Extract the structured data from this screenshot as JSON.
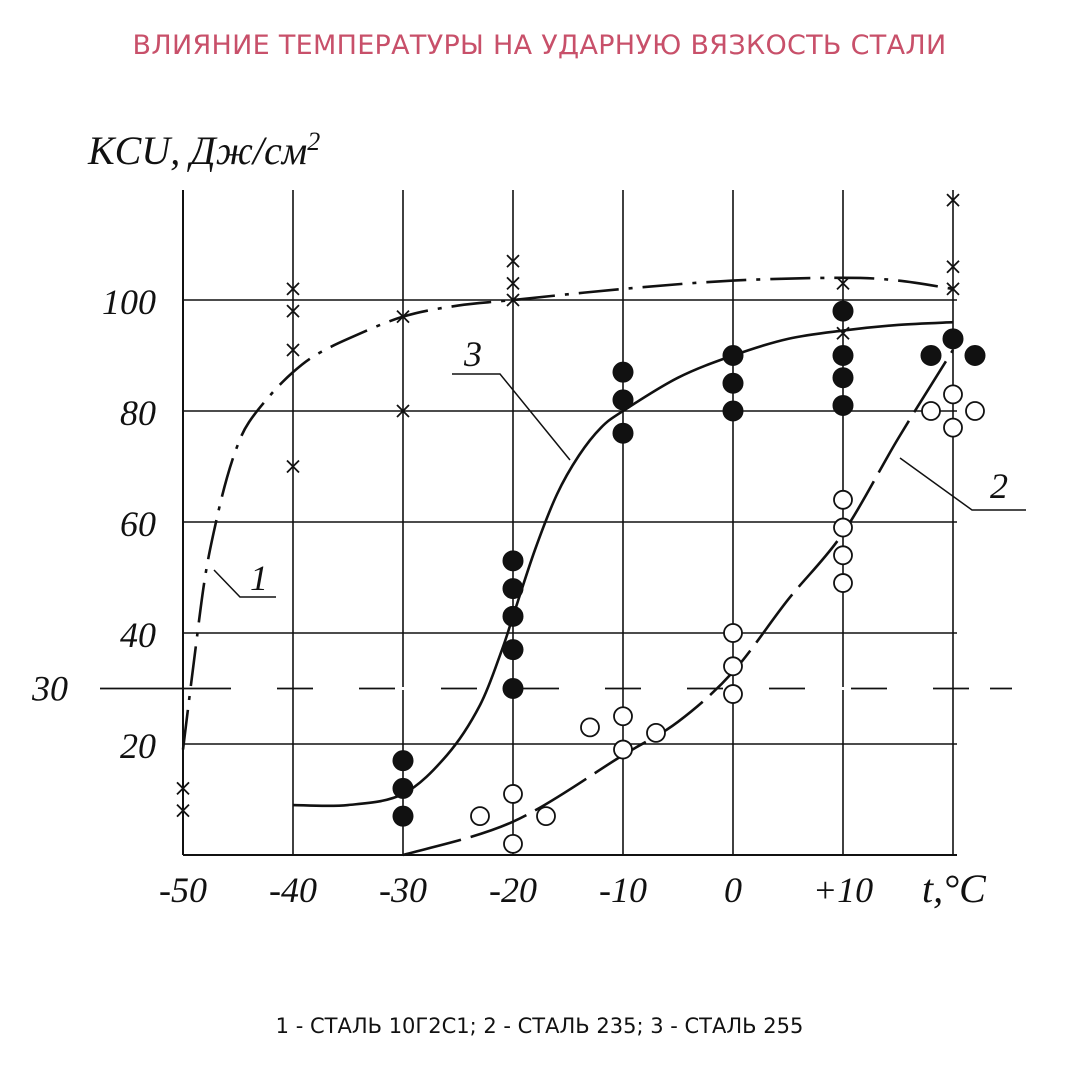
{
  "title": "ВЛИЯНИЕ ТЕМПЕРАТУРЫ НА УДАРНУЮ ВЯЗКОСТЬ СТАЛИ",
  "caption": "1 - СТАЛЬ 10Г2С1; 2 - СТАЛЬ 235; 3 - СТАЛЬ 255",
  "chart_data": {
    "type": "scatter",
    "xlabel": "t,°C",
    "ylabel": "KCU, Дж/см",
    "ylabel_sup": "2",
    "xlim": [
      -50,
      21
    ],
    "ylim": [
      0,
      120
    ],
    "x_ticks": [
      -50,
      -40,
      -30,
      -20,
      -10,
      0,
      10
    ],
    "x_tick_labels": [
      "-50",
      "-40",
      "-30",
      "-20",
      "-10",
      "0",
      "+10"
    ],
    "y_ticks": [
      20,
      40,
      60,
      80,
      100
    ],
    "y_tick_labels": [
      "20",
      "40",
      "60",
      "80",
      "100"
    ],
    "reference_line": {
      "y": 30,
      "label": "30",
      "style": "dash-dot"
    },
    "grid": true,
    "series": [
      {
        "name": "1",
        "marker": "cross",
        "points": [
          [
            -50,
            12
          ],
          [
            -50,
            8
          ],
          [
            -40,
            102
          ],
          [
            -40,
            98
          ],
          [
            -40,
            91
          ],
          [
            -40,
            70
          ],
          [
            -30,
            97
          ],
          [
            -30,
            80
          ],
          [
            -20,
            107
          ],
          [
            -20,
            103
          ],
          [
            -20,
            100
          ],
          [
            10,
            103
          ],
          [
            10,
            94
          ],
          [
            20,
            118
          ],
          [
            20,
            106
          ],
          [
            20,
            102
          ]
        ],
        "curve": [
          [
            -50,
            19
          ],
          [
            -49,
            35
          ],
          [
            -48,
            50
          ],
          [
            -47,
            60
          ],
          [
            -46,
            68
          ],
          [
            -45,
            74
          ],
          [
            -44,
            78
          ],
          [
            -42,
            83
          ],
          [
            -40,
            87
          ],
          [
            -38,
            90
          ],
          [
            -35,
            93
          ],
          [
            -30,
            97
          ],
          [
            -25,
            99
          ],
          [
            -20,
            100
          ],
          [
            -10,
            102
          ],
          [
            0,
            103.5
          ],
          [
            10,
            104
          ],
          [
            15,
            103.5
          ],
          [
            20,
            102
          ]
        ]
      },
      {
        "name": "2",
        "marker": "open-circle",
        "points": [
          [
            -23,
            7
          ],
          [
            -20,
            11
          ],
          [
            -20,
            2
          ],
          [
            -17,
            7
          ],
          [
            -13,
            23
          ],
          [
            -10,
            25
          ],
          [
            -10,
            19
          ],
          [
            -7,
            22
          ],
          [
            0,
            40
          ],
          [
            0,
            34
          ],
          [
            0,
            29
          ],
          [
            10,
            64
          ],
          [
            10,
            59
          ],
          [
            10,
            54
          ],
          [
            10,
            49
          ],
          [
            18,
            80
          ],
          [
            20,
            83
          ],
          [
            20,
            77
          ],
          [
            22,
            80
          ]
        ],
        "curve": [
          [
            -30,
            0
          ],
          [
            -20,
            6
          ],
          [
            -10,
            18
          ],
          [
            -5,
            24
          ],
          [
            0,
            33
          ],
          [
            5,
            46
          ],
          [
            10,
            58
          ],
          [
            15,
            75
          ],
          [
            20,
            91
          ]
        ]
      },
      {
        "name": "3",
        "marker": "filled-circle",
        "points": [
          [
            -30,
            17
          ],
          [
            -30,
            12
          ],
          [
            -30,
            7
          ],
          [
            -20,
            53
          ],
          [
            -20,
            48
          ],
          [
            -20,
            43
          ],
          [
            -20,
            37
          ],
          [
            -20,
            30
          ],
          [
            -10,
            87
          ],
          [
            -10,
            82
          ],
          [
            -10,
            76
          ],
          [
            0,
            90
          ],
          [
            0,
            85
          ],
          [
            0,
            80
          ],
          [
            10,
            98
          ],
          [
            10,
            90
          ],
          [
            10,
            86
          ],
          [
            10,
            81
          ],
          [
            18,
            90
          ],
          [
            20,
            93
          ],
          [
            22,
            90
          ]
        ],
        "curve": [
          [
            -40,
            9
          ],
          [
            -35,
            9
          ],
          [
            -30,
            11
          ],
          [
            -26,
            18
          ],
          [
            -23,
            27
          ],
          [
            -21,
            37
          ],
          [
            -20,
            43
          ],
          [
            -18,
            55
          ],
          [
            -16,
            65
          ],
          [
            -14,
            72
          ],
          [
            -12,
            77
          ],
          [
            -10,
            80
          ],
          [
            -5,
            86
          ],
          [
            0,
            90
          ],
          [
            5,
            93
          ],
          [
            10,
            94.5
          ],
          [
            15,
            95.5
          ],
          [
            20,
            96
          ]
        ]
      }
    ]
  }
}
